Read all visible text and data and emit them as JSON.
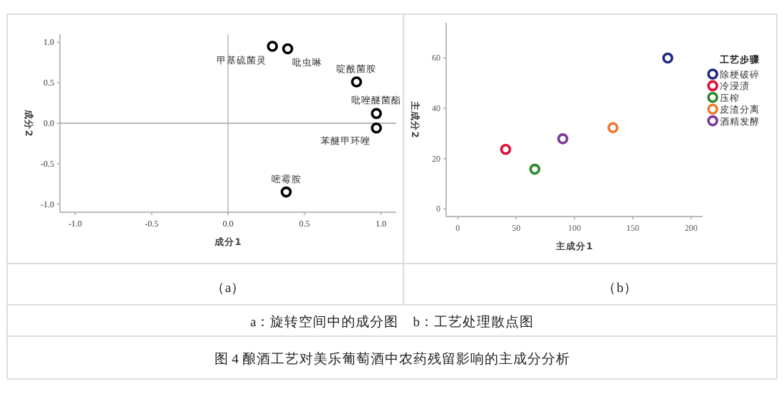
{
  "chart_data": [
    {
      "type": "scatter",
      "xlabel": "成分1",
      "ylabel": "成分2",
      "xlim": [
        -1.1,
        1.1
      ],
      "ylim": [
        -1.1,
        1.1
      ],
      "xticks": [
        {
          "value": -1,
          "label": "-1.0"
        },
        {
          "value": -0.5,
          "label": "-0.5"
        },
        {
          "value": 0,
          "label": "0.0"
        },
        {
          "value": 0.5,
          "label": "0.5"
        },
        {
          "value": 1,
          "label": "1.0"
        }
      ],
      "yticks": [
        {
          "value": -1,
          "label": "-1.0"
        },
        {
          "value": -0.5,
          "label": "-0.5"
        },
        {
          "value": 0,
          "label": "0.0"
        },
        {
          "value": 0.5,
          "label": "0.5"
        },
        {
          "value": 1,
          "label": "1.0"
        }
      ],
      "x": [
        0.29,
        0.39,
        0.84,
        0.97,
        0.97,
        0.38
      ],
      "values": [
        0.95,
        0.92,
        0.51,
        0.12,
        -0.06,
        -0.85
      ],
      "color": "#000000",
      "marker": "circle",
      "ref_lines": [
        {
          "axis": "x",
          "value": 0,
          "color": "#b4b4b4"
        },
        {
          "axis": "y",
          "value": 0,
          "color": "#a0a0a0"
        }
      ],
      "annotations": [
        {
          "text": "甲基硫菌灵",
          "x": 0.29,
          "y": 0.95
        },
        {
          "text": "吡虫啉",
          "x": 0.39,
          "y": 0.92
        },
        {
          "text": "啶酰菌胺",
          "x": 0.84,
          "y": 0.51
        },
        {
          "text": "吡唑醚菌酯",
          "x": 0.97,
          "y": 0.12
        },
        {
          "text": "苯醚甲环唑",
          "x": 0.97,
          "y": -0.06
        },
        {
          "text": "嘧霉胺",
          "x": 0.38,
          "y": -0.85
        },
        "（a）",
        "a：旋转空间中的成分图　b：工艺处理散点图",
        "图 4  酿酒工艺对美乐葡萄酒中农药残留影响的主成分分析"
      ]
    },
    {
      "type": "scatter",
      "xlabel": "主成分1",
      "ylabel": "主成分2",
      "xlim": [
        -10,
        210
      ],
      "ylim": [
        -3,
        74
      ],
      "xticks": [
        0,
        50,
        100,
        150,
        200
      ],
      "yticks": [
        0,
        20,
        40,
        60
      ],
      "marker": "circle",
      "legend": "right",
      "legend_title": "工艺步骤",
      "series": [
        {
          "name": "除梗破碎",
          "color": "#1f2a80",
          "x": [
            180
          ],
          "values": [
            60
          ]
        },
        {
          "name": "冷浸渍",
          "color": "#e0103a",
          "x": [
            41
          ],
          "values": [
            23.7
          ]
        },
        {
          "name": "压榨",
          "color": "#2a8a2a",
          "x": [
            66
          ],
          "values": [
            15.8
          ]
        },
        {
          "name": "皮渣分离",
          "color": "#f07830",
          "x": [
            133
          ],
          "values": [
            32.3
          ]
        },
        {
          "name": "酒精发酵",
          "color": "#7b3a9a",
          "x": [
            90
          ],
          "values": [
            27.9
          ]
        }
      ],
      "annotations": [
        "（b）"
      ]
    }
  ]
}
